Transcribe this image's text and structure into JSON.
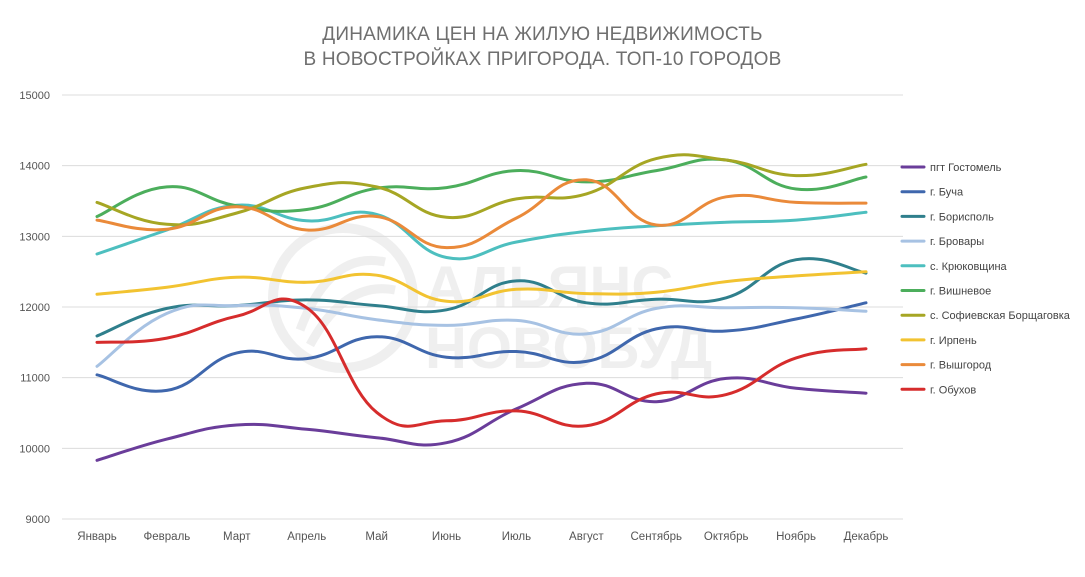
{
  "chart_data": {
    "type": "line",
    "title": [
      "ДИНАМИКА ЦЕН НА ЖИЛУЮ НЕДВИЖИМОСТЬ",
      "В НОВОСТРОЙКАХ ПРИГОРОДА. ТОП-10 ГОРОДОВ"
    ],
    "xlabel": "",
    "ylabel": "",
    "ylim": [
      9000,
      15000
    ],
    "yticks": [
      "15000",
      "14000",
      "13000",
      "12000",
      "11000",
      "10000",
      "9000"
    ],
    "grid": true,
    "legend_position": "right",
    "categories": [
      "Январь",
      "Февраль",
      "Март",
      "Апрель",
      "Май",
      "Июнь",
      "Июль",
      "Август",
      "Сентябрь",
      "Октябрь",
      "Ноябрь",
      "Декабрь"
    ],
    "series": [
      {
        "name": "пгт Гостомель",
        "color": "#6a3d9a",
        "values": [
          9830,
          10130,
          10330,
          10270,
          10150,
          10080,
          10560,
          10920,
          10660,
          10990,
          10850,
          10780
        ]
      },
      {
        "name": "г. Буча",
        "color": "#3f67ad",
        "values": [
          11040,
          10820,
          11350,
          11270,
          11580,
          11290,
          11370,
          11230,
          11690,
          11660,
          11830,
          12060
        ]
      },
      {
        "name": "г. Борисполь",
        "color": "#2f7f8c",
        "values": [
          11590,
          11980,
          12020,
          12100,
          12020,
          11960,
          12370,
          12060,
          12110,
          12130,
          12670,
          12480
        ]
      },
      {
        "name": "г. Бровары",
        "color": "#a7c2e3",
        "values": [
          11160,
          11910,
          12020,
          11980,
          11820,
          11740,
          11810,
          11620,
          11980,
          11990,
          11990,
          11940
        ]
      },
      {
        "name": "с. Крюковщина",
        "color": "#4dbfbf",
        "values": [
          12750,
          13090,
          13440,
          13220,
          13310,
          12700,
          12920,
          13070,
          13150,
          13200,
          13230,
          13340
        ]
      },
      {
        "name": "г. Вишневое",
        "color": "#4cae5c",
        "values": [
          13280,
          13700,
          13430,
          13380,
          13680,
          13690,
          13930,
          13770,
          13930,
          14080,
          13670,
          13840
        ]
      },
      {
        "name": "с. Софиевская Борщаговка",
        "color": "#a6a624",
        "values": [
          13480,
          13170,
          13330,
          13690,
          13700,
          13270,
          13530,
          13600,
          14100,
          14080,
          13860,
          14020
        ]
      },
      {
        "name": "г. Ирпень",
        "color": "#f2c331",
        "values": [
          12180,
          12280,
          12420,
          12350,
          12450,
          12080,
          12250,
          12190,
          12210,
          12360,
          12440,
          12500
        ]
      },
      {
        "name": "г. Вышгород",
        "color": "#ea8a3a",
        "values": [
          13230,
          13100,
          13420,
          13090,
          13280,
          12840,
          13260,
          13800,
          13160,
          13560,
          13480,
          13470
        ]
      },
      {
        "name": "г. Обухов",
        "color": "#d62c2c",
        "values": [
          11500,
          11560,
          11870,
          11990,
          10510,
          10390,
          10530,
          10320,
          10770,
          10760,
          11280,
          11410
        ]
      }
    ]
  },
  "watermark": {
    "line1": "АЛЬЯНС",
    "line2": "НОВОБУД"
  }
}
